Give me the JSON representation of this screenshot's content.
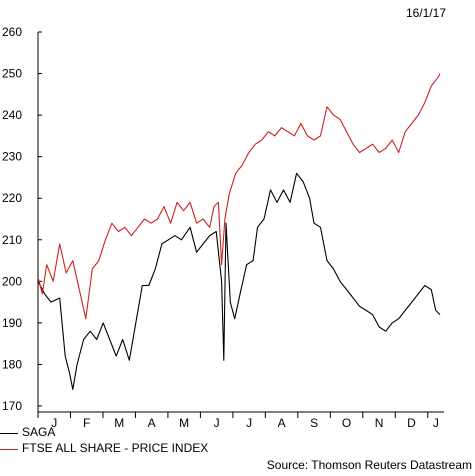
{
  "date_label": "16/1/17",
  "source": "Source: Thomson Reuters Datastream",
  "chart_data": {
    "type": "line",
    "title": "",
    "xlabel": "",
    "ylabel": "",
    "x_ticks": [
      "J",
      "F",
      "M",
      "A",
      "M",
      "J",
      "J",
      "A",
      "S",
      "O",
      "N",
      "D",
      "J"
    ],
    "ylim": [
      170,
      260
    ],
    "y_ticks": [
      170,
      180,
      190,
      200,
      210,
      220,
      230,
      240,
      250,
      260
    ],
    "grid": false,
    "legend_position": "bottom-left",
    "series": [
      {
        "name": "SAGA",
        "color": "#000000",
        "points": [
          [
            0.0,
            200
          ],
          [
            0.3,
            197
          ],
          [
            0.6,
            195
          ],
          [
            1.0,
            196
          ],
          [
            1.25,
            182
          ],
          [
            1.45,
            178
          ],
          [
            1.6,
            174
          ],
          [
            1.8,
            180
          ],
          [
            2.1,
            186
          ],
          [
            2.4,
            188
          ],
          [
            2.7,
            186
          ],
          [
            3.0,
            190
          ],
          [
            3.3,
            186
          ],
          [
            3.6,
            182
          ],
          [
            3.9,
            186
          ],
          [
            4.2,
            181
          ],
          [
            4.5,
            190
          ],
          [
            4.8,
            199
          ],
          [
            5.1,
            199
          ],
          [
            5.4,
            203
          ],
          [
            5.7,
            209
          ],
          [
            6.0,
            210
          ],
          [
            6.3,
            211
          ],
          [
            6.6,
            210
          ],
          [
            7.0,
            213
          ],
          [
            7.3,
            207
          ],
          [
            7.6,
            209
          ],
          [
            7.9,
            211
          ],
          [
            8.2,
            212
          ],
          [
            8.45,
            200
          ],
          [
            8.55,
            181
          ],
          [
            8.65,
            214
          ],
          [
            8.85,
            195
          ],
          [
            9.05,
            191
          ],
          [
            9.3,
            197
          ],
          [
            9.6,
            204
          ],
          [
            9.9,
            205
          ],
          [
            10.1,
            213
          ],
          [
            10.4,
            215
          ],
          [
            10.7,
            222
          ],
          [
            11.0,
            219
          ],
          [
            11.3,
            222
          ],
          [
            11.6,
            219
          ],
          [
            11.9,
            226
          ],
          [
            12.2,
            224
          ],
          [
            12.5,
            220
          ],
          [
            12.7,
            214
          ],
          [
            13.0,
            213
          ],
          [
            13.3,
            205
          ],
          [
            13.6,
            203
          ],
          [
            13.9,
            200
          ],
          [
            14.2,
            198
          ],
          [
            14.5,
            196
          ],
          [
            14.8,
            194
          ],
          [
            15.1,
            193
          ],
          [
            15.4,
            192
          ],
          [
            15.7,
            189
          ],
          [
            16.0,
            188
          ],
          [
            16.3,
            190
          ],
          [
            16.6,
            191
          ],
          [
            16.9,
            193
          ],
          [
            17.2,
            195
          ],
          [
            17.5,
            197
          ],
          [
            17.8,
            199
          ],
          [
            18.1,
            198
          ],
          [
            18.3,
            193
          ],
          [
            18.5,
            192
          ]
        ]
      },
      {
        "name": "FTSE ALL SHARE - PRICE INDEX",
        "color": "#cc2222",
        "points": [
          [
            0.0,
            201
          ],
          [
            0.2,
            197
          ],
          [
            0.4,
            204
          ],
          [
            0.7,
            200
          ],
          [
            1.0,
            209
          ],
          [
            1.3,
            202
          ],
          [
            1.6,
            205
          ],
          [
            1.9,
            198
          ],
          [
            2.2,
            191
          ],
          [
            2.5,
            203
          ],
          [
            2.8,
            205
          ],
          [
            3.1,
            210
          ],
          [
            3.4,
            214
          ],
          [
            3.7,
            212
          ],
          [
            4.0,
            213
          ],
          [
            4.3,
            211
          ],
          [
            4.6,
            213
          ],
          [
            4.9,
            215
          ],
          [
            5.2,
            214
          ],
          [
            5.5,
            215
          ],
          [
            5.8,
            218
          ],
          [
            6.1,
            214
          ],
          [
            6.4,
            219
          ],
          [
            6.7,
            217
          ],
          [
            7.0,
            219
          ],
          [
            7.3,
            214
          ],
          [
            7.6,
            215
          ],
          [
            7.9,
            213
          ],
          [
            8.1,
            218
          ],
          [
            8.3,
            219
          ],
          [
            8.45,
            204
          ],
          [
            8.6,
            215
          ],
          [
            8.8,
            221
          ],
          [
            9.1,
            226
          ],
          [
            9.4,
            228
          ],
          [
            9.7,
            231
          ],
          [
            10.0,
            233
          ],
          [
            10.3,
            234
          ],
          [
            10.6,
            236
          ],
          [
            10.9,
            235
          ],
          [
            11.2,
            237
          ],
          [
            11.5,
            236
          ],
          [
            11.8,
            235
          ],
          [
            12.1,
            238
          ],
          [
            12.4,
            235
          ],
          [
            12.7,
            234
          ],
          [
            13.0,
            235
          ],
          [
            13.3,
            242
          ],
          [
            13.6,
            240
          ],
          [
            13.9,
            239
          ],
          [
            14.2,
            236
          ],
          [
            14.5,
            233
          ],
          [
            14.8,
            231
          ],
          [
            15.1,
            232
          ],
          [
            15.4,
            233
          ],
          [
            15.7,
            231
          ],
          [
            16.0,
            232
          ],
          [
            16.3,
            234
          ],
          [
            16.6,
            231
          ],
          [
            16.9,
            236
          ],
          [
            17.2,
            238
          ],
          [
            17.5,
            240
          ],
          [
            17.8,
            243
          ],
          [
            18.1,
            247
          ],
          [
            18.4,
            249
          ],
          [
            18.5,
            250
          ]
        ]
      }
    ]
  }
}
